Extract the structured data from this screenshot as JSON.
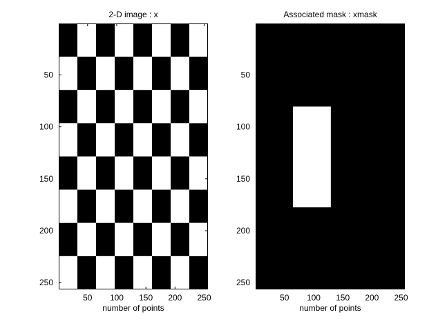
{
  "chart_data": [
    {
      "type": "heatmap",
      "title": "2-D image : x",
      "xlabel": "number of points",
      "ylabel": "",
      "image_width": 256,
      "image_height": 256,
      "xlim": [
        0.5,
        256.5
      ],
      "ylim": [
        0.5,
        256.5
      ],
      "y_direction": "down",
      "colormap": "gray",
      "x_ticks": [
        50,
        100,
        150,
        200,
        250
      ],
      "y_ticks": [
        50,
        100,
        150,
        200,
        250
      ],
      "pattern": "checkerboard",
      "checker_columns": 8,
      "checker_rows": 8,
      "top_left_cell": "black",
      "colors": {
        "black": "#000000",
        "white": "#ffffff"
      }
    },
    {
      "type": "heatmap",
      "title": "Associated mask : xmask",
      "xlabel": "number of points",
      "ylabel": "",
      "image_width": 256,
      "image_height": 256,
      "xlim": [
        0.5,
        256.5
      ],
      "ylim": [
        0.5,
        256.5
      ],
      "y_direction": "down",
      "colormap": "gray",
      "x_ticks": [
        50,
        100,
        150,
        200,
        250
      ],
      "y_ticks": [
        50,
        100,
        150,
        200,
        250
      ],
      "pattern": "mask",
      "background": "black",
      "white_region": {
        "x": [
          65,
          129
        ],
        "y": [
          81,
          177
        ]
      },
      "colors": {
        "black": "#000000",
        "white": "#ffffff"
      }
    }
  ]
}
